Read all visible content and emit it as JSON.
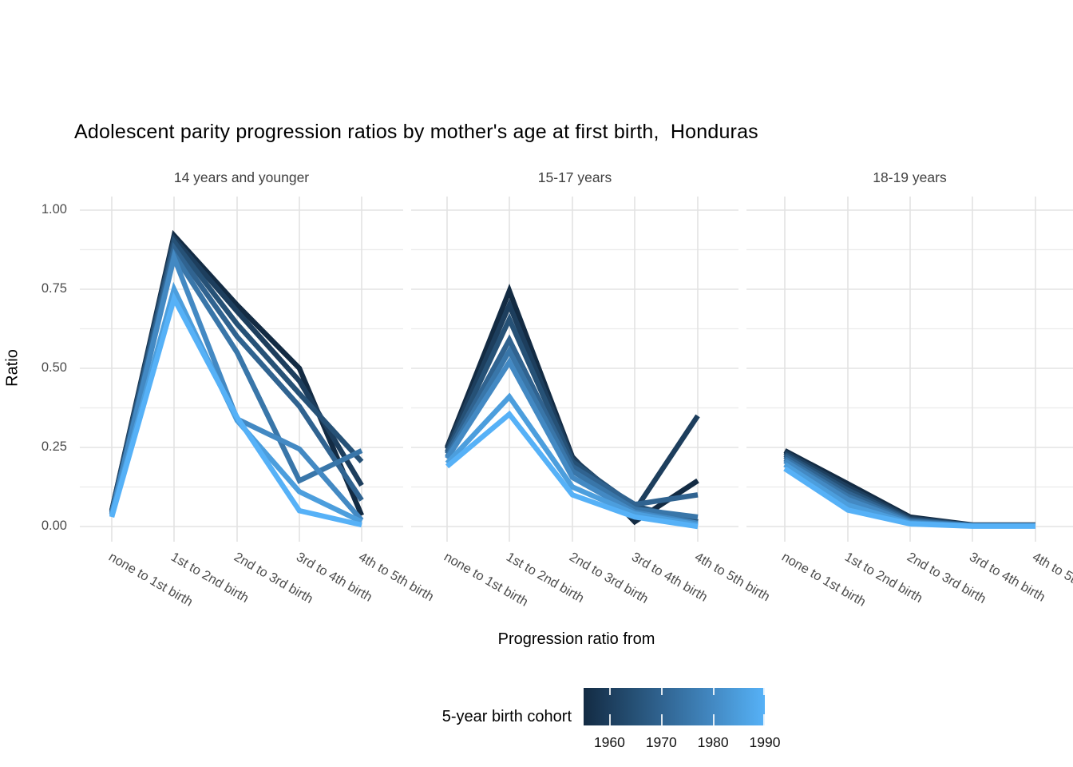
{
  "title": "Adolescent parity progression ratios by mother's age at first birth,  Honduras",
  "y_axis": {
    "label": "Ratio",
    "ticks": [
      {
        "label": "1.00",
        "value": 1.0
      },
      {
        "label": "0.75",
        "value": 0.75
      },
      {
        "label": "0.50",
        "value": 0.5
      },
      {
        "label": "0.25",
        "value": 0.25
      },
      {
        "label": "0.00",
        "value": 0.0
      }
    ]
  },
  "x_axis": {
    "label": "Progression ratio from",
    "categories": [
      "none to 1st birth",
      "1st to 2nd birth",
      "2nd to 3rd birth",
      "3rd to 4th birth",
      "4th to 5th birth"
    ]
  },
  "facets": [
    {
      "label": "14 years and younger"
    },
    {
      "label": "15-17 years"
    },
    {
      "label": "18-19 years"
    }
  ],
  "legend": {
    "title": "5-year birth cohort",
    "type": "colorbar",
    "tick_labels": [
      "1960",
      "1970",
      "1980",
      "1990"
    ],
    "tick_values": [
      1960,
      1970,
      1980,
      1990
    ],
    "range": [
      1955,
      1990
    ],
    "low_color": "#132B43",
    "high_color": "#56B1F7"
  },
  "chart_data": {
    "type": "line",
    "title": "Adolescent parity progression ratios by mother's age at first birth,  Honduras",
    "xlabel": "Progression ratio from",
    "ylabel": "Ratio",
    "ylim": [
      0,
      1
    ],
    "yticks": [
      0,
      0.25,
      0.5,
      0.75,
      1.0
    ],
    "grid": "on",
    "legend_position": "bottom",
    "categories": [
      "none to 1st birth",
      "1st to 2nd birth",
      "2nd to 3rd birth",
      "3rd to 4th birth",
      "4th to 5th birth"
    ],
    "facets": [
      {
        "name": "14 years and younger",
        "series": [
          {
            "name": "1955",
            "color": "#132B43",
            "values": [
              0.05,
              0.92,
              0.7,
              0.5,
              0.035
            ]
          },
          {
            "name": "1960",
            "color": "#1D3E5D",
            "values": [
              0.05,
              0.91,
              0.68,
              0.46,
              0.13
            ]
          },
          {
            "name": "1965",
            "color": "#265176",
            "values": [
              0.045,
              0.9,
              0.64,
              0.42,
              0.205
            ]
          },
          {
            "name": "1970",
            "color": "#306390",
            "values": [
              0.04,
              0.88,
              0.6,
              0.38,
              0.083
            ]
          },
          {
            "name": "1975",
            "color": "#3976A9",
            "values": [
              0.04,
              0.86,
              0.55,
              0.145,
              0.24
            ]
          },
          {
            "name": "1980",
            "color": "#4389C3",
            "values": [
              0.04,
              0.85,
              0.34,
              0.245,
              0.02
            ]
          },
          {
            "name": "1985",
            "color": "#4C9EDD",
            "values": [
              0.035,
              0.75,
              0.335,
              0.11,
              0.015
            ]
          },
          {
            "name": "1990",
            "color": "#56B1F7",
            "values": [
              0.03,
              0.72,
              0.345,
              0.05,
              0.005
            ]
          }
        ]
      },
      {
        "name": "15-17 years",
        "series": [
          {
            "name": "1955",
            "color": "#132B43",
            "values": [
              0.25,
              0.745,
              0.22,
              0.015,
              0.145
            ]
          },
          {
            "name": "1960",
            "color": "#1D3E5D",
            "values": [
              0.245,
              0.7,
              0.215,
              0.05,
              0.35
            ]
          },
          {
            "name": "1965",
            "color": "#265176",
            "values": [
              0.235,
              0.655,
              0.205,
              0.065,
              0.015
            ]
          },
          {
            "name": "1970",
            "color": "#306390",
            "values": [
              0.23,
              0.59,
              0.19,
              0.07,
              0.1
            ]
          },
          {
            "name": "1975",
            "color": "#3976A9",
            "values": [
              0.22,
              0.555,
              0.175,
              0.055,
              0.03
            ]
          },
          {
            "name": "1980",
            "color": "#4389C3",
            "values": [
              0.215,
              0.52,
              0.155,
              0.045,
              0.01
            ]
          },
          {
            "name": "1985",
            "color": "#4C9EDD",
            "values": [
              0.2,
              0.41,
              0.125,
              0.04,
              0.005
            ]
          },
          {
            "name": "1990",
            "color": "#56B1F7",
            "values": [
              0.19,
              0.355,
              0.1,
              0.03,
              0.0
            ]
          }
        ]
      },
      {
        "name": "18-19 years",
        "series": [
          {
            "name": "1955",
            "color": "#132B43",
            "values": [
              0.24,
              0.135,
              0.03,
              0.005,
              0.005
            ]
          },
          {
            "name": "1960",
            "color": "#1D3E5D",
            "values": [
              0.235,
              0.125,
              0.026,
              0.004,
              0.004
            ]
          },
          {
            "name": "1965",
            "color": "#265176",
            "values": [
              0.228,
              0.115,
              0.022,
              0.004,
              0.004
            ]
          },
          {
            "name": "1970",
            "color": "#306390",
            "values": [
              0.222,
              0.105,
              0.019,
              0.003,
              0.003
            ]
          },
          {
            "name": "1975",
            "color": "#3976A9",
            "values": [
              0.214,
              0.095,
              0.016,
              0.003,
              0.003
            ]
          },
          {
            "name": "1980",
            "color": "#4389C3",
            "values": [
              0.207,
              0.085,
              0.013,
              0.002,
              0.002
            ]
          },
          {
            "name": "1985",
            "color": "#4C9EDD",
            "values": [
              0.196,
              0.068,
              0.01,
              0.002,
              0.002
            ]
          },
          {
            "name": "1990",
            "color": "#56B1F7",
            "values": [
              0.183,
              0.052,
              0.008,
              0.001,
              0.001
            ]
          }
        ]
      }
    ]
  }
}
